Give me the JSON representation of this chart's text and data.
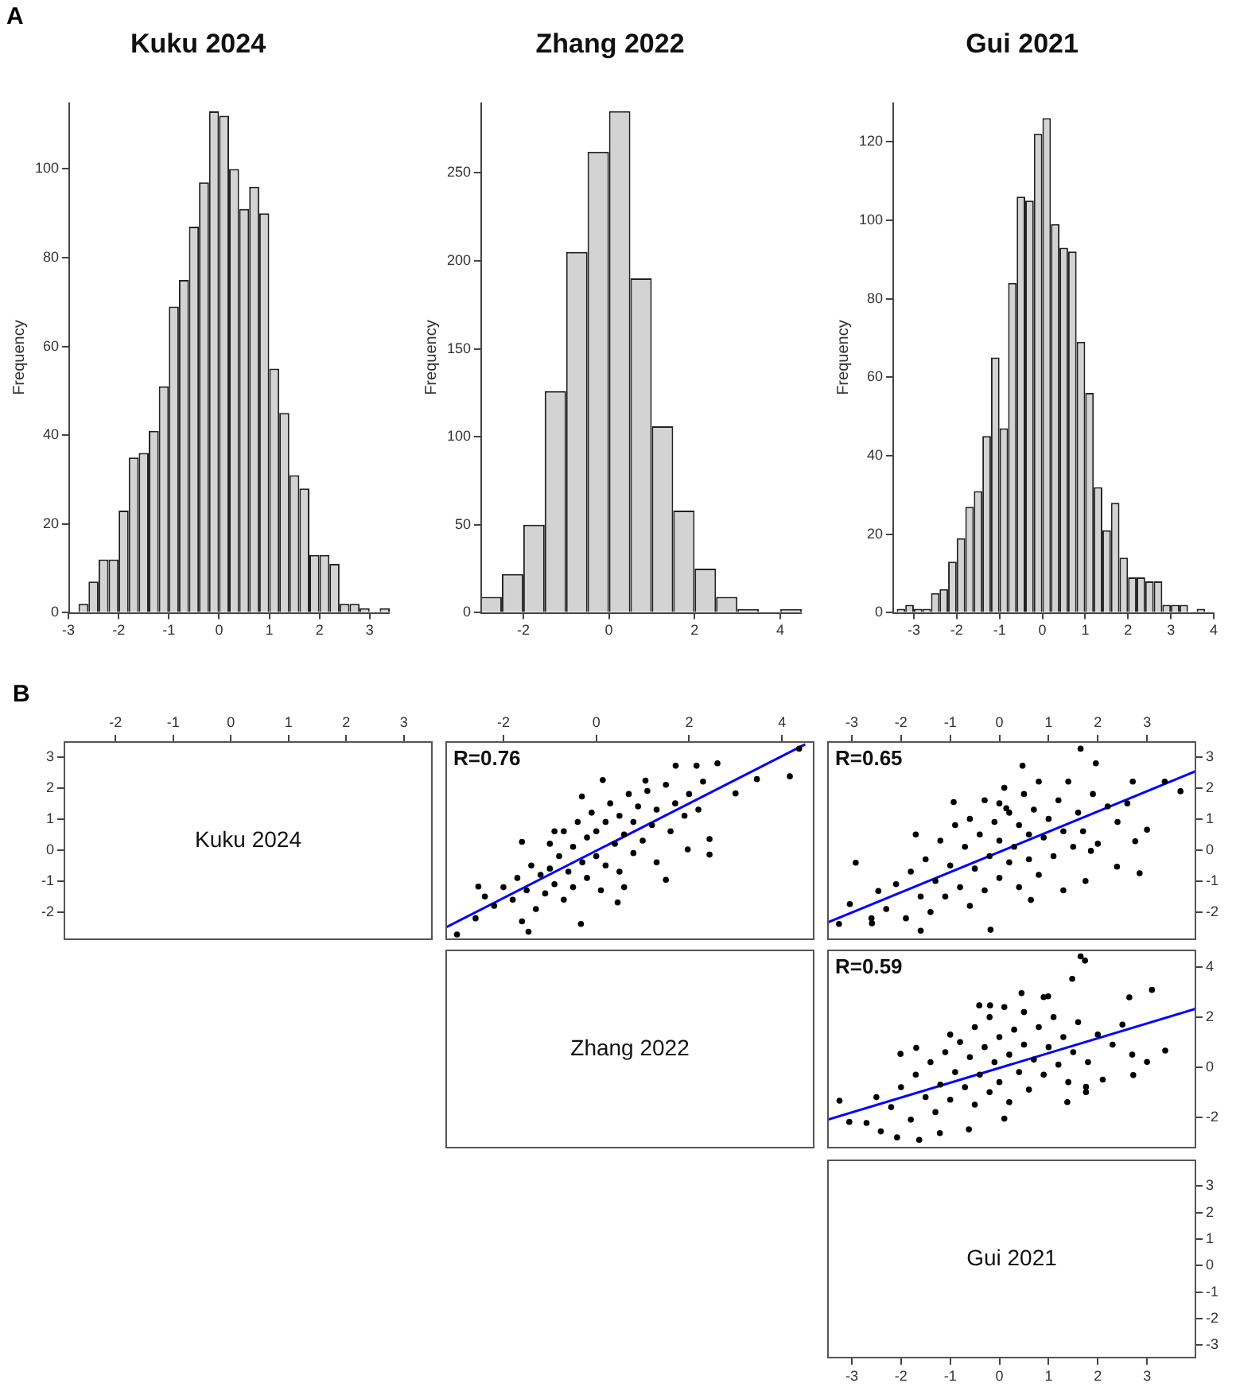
{
  "chart_data": [
    {
      "type": "histogram",
      "title": "Kuku 2024",
      "ylabel": "Frequency",
      "annotations": [
        "A"
      ],
      "color": "#d3d3d3",
      "bins": [
        -2.8,
        -2.6,
        -2.4,
        -2.2,
        -2.0,
        -1.8,
        -1.6,
        -1.4,
        -1.2,
        -1.0,
        -0.8,
        -0.6,
        -0.4,
        -0.2,
        0.0,
        0.2,
        0.4,
        0.6,
        0.8,
        1.0,
        1.2,
        1.4,
        1.6,
        1.8,
        2.0,
        2.2,
        2.4,
        2.6,
        2.8,
        3.0,
        3.2,
        3.4
      ],
      "values": [
        2,
        7,
        12,
        12,
        23,
        35,
        36,
        41,
        51,
        69,
        75,
        87,
        97,
        113,
        112,
        100,
        91,
        96,
        90,
        55,
        45,
        31,
        28,
        13,
        13,
        11,
        2,
        2,
        1,
        0,
        1
      ],
      "xlim": [
        -3,
        3.4
      ],
      "xticks": [
        -3,
        -2,
        -1,
        0,
        1,
        2,
        3
      ],
      "ylim": [
        0,
        115
      ],
      "yticks": [
        0,
        20,
        40,
        60,
        80,
        100
      ]
    },
    {
      "type": "histogram",
      "title": "Zhang 2022",
      "ylabel": "Frequency",
      "color": "#d3d3d3",
      "bins": [
        -3.0,
        -2.5,
        -2.0,
        -1.5,
        -1.0,
        -0.5,
        0.0,
        0.5,
        1.0,
        1.5,
        2.0,
        2.5,
        3.0,
        3.5,
        4.0,
        4.5
      ],
      "values": [
        9,
        22,
        50,
        126,
        205,
        262,
        285,
        190,
        106,
        58,
        25,
        9,
        2,
        0,
        2
      ],
      "xlim": [
        -3,
        4.5
      ],
      "xticks": [
        -2,
        0,
        2,
        4
      ],
      "ylim": [
        0,
        290
      ],
      "yticks": [
        0,
        50,
        100,
        150,
        200,
        250
      ]
    },
    {
      "type": "histogram",
      "title": "Gui 2021",
      "ylabel": "Frequency",
      "color": "#d3d3d3",
      "bins": [
        -3.4,
        -3.2,
        -3.0,
        -2.8,
        -2.6,
        -2.4,
        -2.2,
        -2.0,
        -1.8,
        -1.6,
        -1.4,
        -1.2,
        -1.0,
        -0.8,
        -0.6,
        -0.4,
        -0.2,
        0.0,
        0.2,
        0.4,
        0.6,
        0.8,
        1.0,
        1.2,
        1.4,
        1.6,
        1.8,
        2.0,
        2.2,
        2.4,
        2.6,
        2.8,
        3.0,
        3.2,
        3.4,
        3.6,
        3.8
      ],
      "values": [
        1,
        2,
        1,
        1,
        5,
        6,
        13,
        19,
        27,
        31,
        45,
        65,
        47,
        84,
        106,
        105,
        122,
        126,
        99,
        93,
        92,
        69,
        56,
        32,
        21,
        28,
        14,
        9,
        9,
        8,
        8,
        2,
        2,
        2,
        0,
        1
      ],
      "xlim": [
        -3.5,
        4
      ],
      "xticks": [
        -3,
        -2,
        -1,
        0,
        1,
        2,
        3,
        4
      ],
      "ylim": [
        0,
        130
      ],
      "yticks": [
        0,
        20,
        40,
        60,
        80,
        100,
        120
      ]
    },
    {
      "type": "scatter",
      "title": "Kuku 2024",
      "annotations": [
        "B"
      ],
      "xlim": [
        -2.9,
        3.5
      ],
      "xticks": [
        -2,
        -1,
        0,
        1,
        2,
        3
      ],
      "ylim": [
        -2.9,
        3.5
      ],
      "yticks": [
        -2,
        -1,
        0,
        1,
        2,
        3
      ]
    },
    {
      "type": "scatter",
      "annotations": [
        "R=0.76"
      ],
      "marker": "circle",
      "xlim": [
        -3.25,
        4.7
      ],
      "xticks": [
        -2,
        0,
        2,
        4
      ],
      "ylim": [
        -2.9,
        3.5
      ],
      "tick_labels": "x",
      "series": [
        {
          "type": "scatter",
          "color": "#000000",
          "x": [
            -2.2,
            -2,
            -1.8,
            -1.7,
            -1.5,
            -1.4,
            -1.3,
            -1.2,
            -1.1,
            -1,
            -1,
            -0.9,
            -0.8,
            -0.7,
            -0.7,
            -0.6,
            -0.5,
            -0.5,
            -0.4,
            -0.3,
            -0.2,
            -0.2,
            -0.1,
            0,
            0,
            0.1,
            0.2,
            0.2,
            0.3,
            0.4,
            0.5,
            0.5,
            0.6,
            0.7,
            0.8,
            0.8,
            0.9,
            1,
            1.1,
            1.2,
            1.3,
            1.3,
            1.5,
            1.6,
            1.7,
            1.9,
            2,
            2.2,
            2.3,
            -2.6,
            -2.4,
            -1.6,
            -0.9,
            0.6,
            4.37,
            4.17,
            3.46,
            2.61,
            3.0,
            2.44,
            2.44,
            1.97,
            1.5,
            -3.0,
            -1.46,
            -0.33,
            -2.54,
            0.14,
            -0.31,
            -1.6,
            0.46,
            1.71,
            2.16,
            1.06
          ],
          "values": [
            -1.8,
            -1.2,
            -1.6,
            -0.9,
            -1.3,
            -0.5,
            -1.9,
            -0.8,
            -1.4,
            0.2,
            -0.6,
            -1.1,
            -0.2,
            -1.6,
            0.6,
            -0.7,
            0.1,
            -1.2,
            0.9,
            -0.4,
            0.4,
            -0.9,
            1.2,
            -0.2,
            0.6,
            -1.3,
            0.9,
            -0.5,
            1.5,
            0.2,
            -0.7,
            1.1,
            0.5,
            1.8,
            -0.1,
            0.9,
            1.4,
            0.3,
            1.9,
            0.8,
            -0.4,
            1.3,
            2.1,
            0.6,
            1.5,
            1.1,
            1.8,
            1.3,
            2.2,
            -2.2,
            -1.5,
            -2.3,
            0.6,
            -1.2,
            3.26,
            2.37,
            2.28,
            2.79,
            1.82,
            -0.15,
            0.35,
            0.02,
            -0.96,
            -2.72,
            -2.63,
            -2.38,
            -1.18,
            2.25,
            1.72,
            0.26,
            -1.69,
            2.71,
            2.71,
            2.23
          ]
        },
        {
          "type": "line",
          "marker": "none",
          "color": "#0000ff",
          "x": [
            -3.25,
            4.5
          ],
          "values": [
            -2.5,
            3.4
          ]
        }
      ]
    },
    {
      "type": "scatter",
      "annotations": [
        "R=0.65"
      ],
      "marker": "circle",
      "xlim": [
        -3.5,
        4
      ],
      "xticks": [
        -3,
        -2,
        -1,
        0,
        1,
        2,
        3
      ],
      "ylim": [
        -2.9,
        3.5
      ],
      "yticks": [
        -2,
        -1,
        0,
        1,
        2,
        3
      ],
      "series": [
        {
          "type": "scatter",
          "color": "#000000",
          "x": [
            -2.3,
            -2.1,
            -1.9,
            -1.8,
            -1.6,
            -1.5,
            -1.4,
            -1.3,
            -1.2,
            -1.1,
            -1,
            -0.9,
            -0.8,
            -0.7,
            -0.6,
            -0.6,
            -0.5,
            -0.4,
            -0.3,
            -0.3,
            -0.2,
            -0.1,
            0,
            0,
            0.1,
            0.2,
            0.2,
            0.3,
            0.4,
            0.4,
            0.5,
            0.6,
            0.6,
            0.7,
            0.8,
            0.8,
            0.9,
            1,
            1.1,
            1.2,
            1.3,
            1.4,
            1.5,
            1.6,
            1.7,
            1.9,
            2,
            2.2,
            2.4,
            2.6,
            -2.6,
            -1.7,
            1.3,
            0.0,
            1.65,
            1.96,
            3.68,
            3.36,
            2.71,
            3.0,
            2.85,
            2.76,
            -2.92,
            -3.04,
            -3.26,
            -2.59,
            -2.46,
            -0.18,
            1.75,
            0.64,
            0.47,
            0.14,
            -0.93,
            -1.6,
            2.39,
            1.86
          ],
          "values": [
            -1.9,
            -1.1,
            -2.2,
            -0.7,
            -1.5,
            -0.3,
            -2.0,
            -1.0,
            0.3,
            -1.5,
            -0.5,
            0.8,
            -1.2,
            0.1,
            -1.8,
            1.0,
            -0.6,
            0.5,
            -1.3,
            1.6,
            -0.2,
            0.9,
            -0.9,
            0.3,
            2.0,
            -0.4,
            1.2,
            0.1,
            -1.2,
            0.8,
            1.8,
            -0.3,
            0.5,
            1.3,
            -0.8,
            2.2,
            0.4,
            1.0,
            -0.2,
            1.6,
            0.6,
            2.2,
            0.1,
            1.2,
            0.6,
            1.8,
            0.2,
            1.4,
            0.9,
            1.5,
            -2.2,
            0.5,
            -1.3,
            1.5,
            3.26,
            2.79,
            1.89,
            2.2,
            2.2,
            0.65,
            -0.75,
            0.28,
            -0.41,
            -1.74,
            -2.38,
            -2.36,
            -1.32,
            -2.57,
            -1.0,
            -1.61,
            2.71,
            1.34,
            1.54,
            -2.6,
            -0.54,
            -0.03
          ]
        },
        {
          "type": "line",
          "marker": "none",
          "color": "#0000ff",
          "x": [
            -3.5,
            4
          ],
          "values": [
            -2.34,
            2.54
          ]
        }
      ]
    },
    {
      "type": "scatter",
      "title": "Zhang 2022",
      "xlim": [
        -3.25,
        4.7
      ],
      "ylim": [
        -3.25,
        4.7
      ],
      "tick_labels": false
    },
    {
      "type": "scatter",
      "annotations": [
        "R=0.59"
      ],
      "marker": "circle",
      "xlim": [
        -3.5,
        4
      ],
      "ylim": [
        -3.25,
        4.7
      ],
      "yticks": [
        -2,
        0,
        2,
        4
      ],
      "tick_labels": "y",
      "series": [
        {
          "type": "scatter",
          "color": "#000000",
          "x": [
            -2.2,
            -2,
            -1.8,
            -1.7,
            -1.5,
            -1.4,
            -1.3,
            -1.2,
            -1.1,
            -1,
            -0.9,
            -0.8,
            -0.7,
            -0.6,
            -0.5,
            -0.5,
            -0.4,
            -0.3,
            -0.2,
            -0.2,
            -0.1,
            0,
            0,
            0.1,
            0.2,
            0.2,
            0.3,
            0.4,
            0.5,
            0.5,
            0.6,
            0.7,
            0.8,
            0.9,
            1,
            1.1,
            1.2,
            1.3,
            1.4,
            1.5,
            1.6,
            1.8,
            2,
            2.1,
            2.3,
            2.5,
            2.7,
            -2.5,
            0.9,
            -1.0,
            1.65,
            1.74,
            1.48,
            3.1,
            2.64,
            3.37,
            3.0,
            2.72,
            1.76,
            1.76,
            -3.25,
            -3.05,
            -2.7,
            -2.41,
            -2.08,
            -1.63,
            -1.21,
            -0.62,
            0.1,
            1.38,
            -0.19,
            0.45,
            0.99,
            -2.01,
            -1.69,
            -0.41
          ],
          "values": [
            -1.6,
            -0.8,
            -2.1,
            -0.3,
            -1.2,
            0.2,
            -1.8,
            -0.7,
            0.6,
            -1.3,
            -0.2,
            1.0,
            -0.8,
            0.4,
            -1.5,
            1.6,
            -0.3,
            0.8,
            -1.0,
            2.0,
            0.2,
            1.2,
            -0.6,
            2.4,
            0.5,
            -1.4,
            1.5,
            -0.2,
            0.9,
            2.2,
            -0.9,
            0.3,
            1.6,
            -0.3,
            0.8,
            2.0,
            0.1,
            1.2,
            -0.6,
            0.6,
            1.8,
            0.2,
            1.3,
            -0.5,
            0.9,
            1.7,
            0.5,
            -1.2,
            2.8,
            1.3,
            4.43,
            4.26,
            3.53,
            3.09,
            2.79,
            0.66,
            0.21,
            -0.32,
            -1.0,
            -0.79,
            -1.34,
            -2.19,
            -2.23,
            -2.57,
            -2.81,
            -2.91,
            -2.64,
            -2.49,
            -2.06,
            -1.4,
            2.47,
            2.96,
            2.83,
            0.53,
            0.77,
            2.47
          ]
        },
        {
          "type": "line",
          "marker": "none",
          "color": "#0000ff",
          "x": [
            -3.5,
            4
          ],
          "values": [
            -2.11,
            2.34
          ]
        }
      ]
    },
    {
      "type": "scatter",
      "title": "Gui 2021",
      "xlim": [
        -3.5,
        4
      ],
      "xticks": [
        -3,
        -2,
        -1,
        0,
        1,
        2,
        3
      ],
      "ylim": [
        -3.5,
        4
      ],
      "yticks": [
        -3,
        -2,
        -1,
        0,
        1,
        2,
        3
      ]
    }
  ]
}
